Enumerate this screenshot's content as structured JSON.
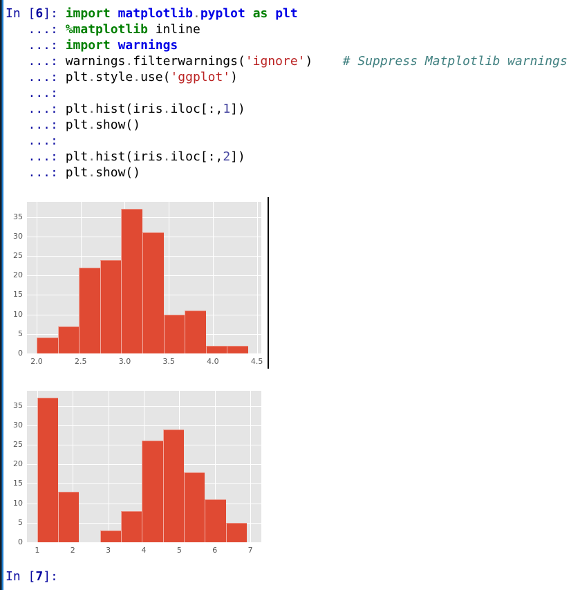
{
  "console": {
    "lines": [
      {
        "segments": [
          [
            "p",
            "In ["
          ],
          [
            "pn",
            "6"
          ],
          [
            "p",
            "]: "
          ],
          [
            "kw",
            "import"
          ],
          [
            "plain",
            " "
          ],
          [
            "ns",
            "matplotlib"
          ],
          [
            "op",
            "."
          ],
          [
            "ns",
            "pyplot"
          ],
          [
            "plain",
            " "
          ],
          [
            "kw",
            "as"
          ],
          [
            "plain",
            " "
          ],
          [
            "ns",
            "plt"
          ]
        ]
      },
      {
        "segments": [
          [
            "p",
            "   ...: "
          ],
          [
            "kw",
            "%matplotlib"
          ],
          [
            "plain",
            " inline"
          ]
        ]
      },
      {
        "segments": [
          [
            "p",
            "   ...: "
          ],
          [
            "kw",
            "import"
          ],
          [
            "plain",
            " "
          ],
          [
            "ns",
            "warnings"
          ]
        ]
      },
      {
        "segments": [
          [
            "p",
            "   ...: "
          ],
          [
            "plain",
            "warnings"
          ],
          [
            "op",
            "."
          ],
          [
            "plain",
            "filterwarnings("
          ],
          [
            "str",
            "'ignore'"
          ],
          [
            "plain",
            ")    "
          ],
          [
            "com",
            "# Suppress Matplotlib warnings"
          ]
        ]
      },
      {
        "segments": [
          [
            "p",
            "   ...: "
          ],
          [
            "plain",
            "plt"
          ],
          [
            "op",
            "."
          ],
          [
            "plain",
            "style"
          ],
          [
            "op",
            "."
          ],
          [
            "plain",
            "use("
          ],
          [
            "str",
            "'ggplot'"
          ],
          [
            "plain",
            ")"
          ]
        ]
      },
      {
        "segments": [
          [
            "p",
            "   ...: "
          ]
        ]
      },
      {
        "segments": [
          [
            "p",
            "   ...: "
          ],
          [
            "plain",
            "plt"
          ],
          [
            "op",
            "."
          ],
          [
            "plain",
            "hist(iris"
          ],
          [
            "op",
            "."
          ],
          [
            "plain",
            "iloc[:,"
          ],
          [
            "num",
            "1"
          ],
          [
            "plain",
            "])"
          ]
        ]
      },
      {
        "segments": [
          [
            "p",
            "   ...: "
          ],
          [
            "plain",
            "plt"
          ],
          [
            "op",
            "."
          ],
          [
            "plain",
            "show()"
          ]
        ]
      },
      {
        "segments": [
          [
            "p",
            "   ...: "
          ]
        ]
      },
      {
        "segments": [
          [
            "p",
            "   ...: "
          ],
          [
            "plain",
            "plt"
          ],
          [
            "op",
            "."
          ],
          [
            "plain",
            "hist(iris"
          ],
          [
            "op",
            "."
          ],
          [
            "plain",
            "iloc[:,"
          ],
          [
            "num",
            "2"
          ],
          [
            "plain",
            "])"
          ]
        ]
      },
      {
        "segments": [
          [
            "p",
            "   ...: "
          ],
          [
            "plain",
            "plt"
          ],
          [
            "op",
            "."
          ],
          [
            "plain",
            "show()"
          ]
        ]
      }
    ],
    "input_prompt": {
      "segments": [
        [
          "p",
          "In ["
        ],
        [
          "pn",
          "7"
        ],
        [
          "p",
          "]: "
        ]
      ]
    }
  },
  "colors": {
    "bar": "#E04A33",
    "plot_background": "#E5E5E5",
    "grid": "#FFFFFF",
    "tick_label": "#555555",
    "pane_border_blue": "#1F7FD0",
    "pane_border_dark": "#141E28",
    "prompt": "#0909A0",
    "keyword": "#008000",
    "namespace": "#0000E6",
    "string": "#BA2121",
    "comment": "#408080",
    "number_literal": "#4646A0"
  },
  "chart_data": [
    {
      "type": "bar",
      "subtype": "histogram",
      "title": "",
      "xlabel": "",
      "ylabel": "",
      "values": [
        4,
        7,
        22,
        24,
        37,
        31,
        10,
        11,
        2,
        2
      ],
      "bins": {
        "start": 2.0,
        "width": 0.24,
        "end": 4.4
      },
      "xlim": [
        1.89,
        4.55
      ],
      "ylim": [
        0,
        38.85
      ],
      "xticks": [
        2.0,
        2.5,
        3.0,
        3.5,
        4.0,
        4.5
      ],
      "xtick_labels": [
        "2.0",
        "2.5",
        "3.0",
        "3.5",
        "4.0",
        "4.5"
      ],
      "yticks": [
        0,
        5,
        10,
        15,
        20,
        25,
        30,
        35
      ],
      "ytick_labels": [
        "0",
        "5",
        "10",
        "15",
        "20",
        "25",
        "30",
        "35"
      ],
      "grid": true,
      "legend": false
    },
    {
      "type": "bar",
      "subtype": "histogram",
      "title": "",
      "xlabel": "",
      "ylabel": "",
      "values": [
        37,
        13,
        0,
        3,
        8,
        26,
        29,
        18,
        11,
        5
      ],
      "bins": {
        "start": 1.0,
        "width": 0.59,
        "end": 6.9
      },
      "xlim": [
        0.71,
        7.31
      ],
      "ylim": [
        0,
        38.85
      ],
      "xticks": [
        1,
        2,
        3,
        4,
        5,
        6,
        7
      ],
      "xtick_labels": [
        "1",
        "2",
        "3",
        "4",
        "5",
        "6",
        "7"
      ],
      "yticks": [
        0,
        5,
        10,
        15,
        20,
        25,
        30,
        35
      ],
      "ytick_labels": [
        "0",
        "5",
        "10",
        "15",
        "20",
        "25",
        "30",
        "35"
      ],
      "grid": true,
      "legend": false
    }
  ]
}
